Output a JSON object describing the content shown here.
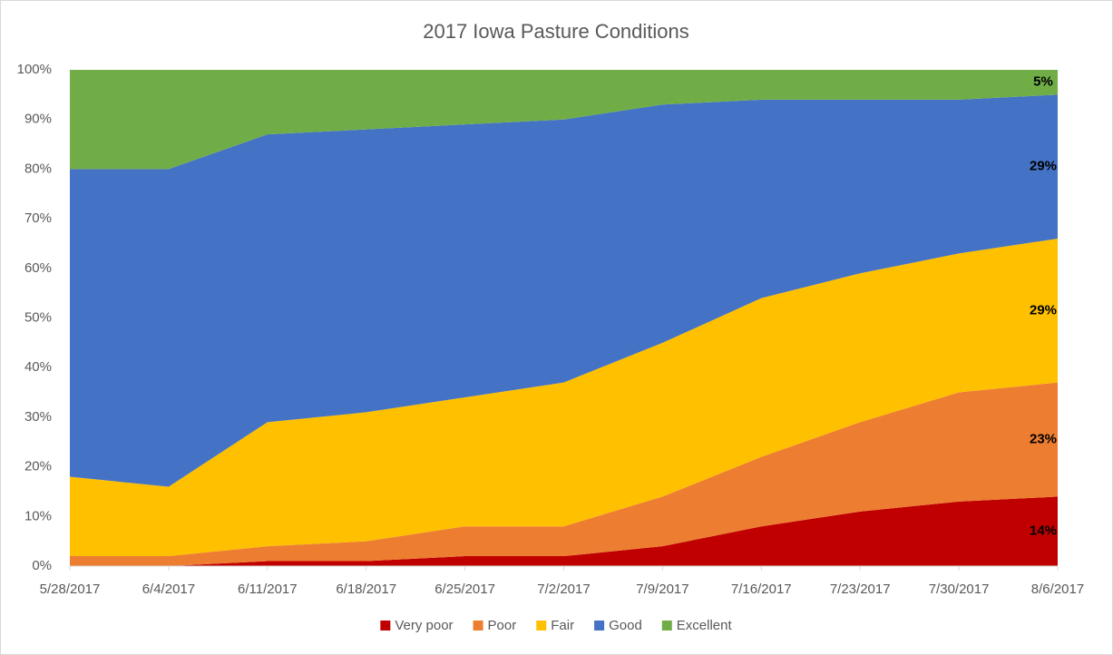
{
  "chart_data": {
    "type": "stacked_area",
    "title": "2017 Iowa Pasture Conditions",
    "categories": [
      "5/28/2017",
      "6/4/2017",
      "6/11/2017",
      "6/18/2017",
      "6/25/2017",
      "7/2/2017",
      "7/9/2017",
      "7/16/2017",
      "7/23/2017",
      "7/30/2017",
      "8/6/2017"
    ],
    "series": [
      {
        "name": "Very poor",
        "color": "#c00000",
        "values": [
          0,
          0,
          1,
          1,
          2,
          2,
          4,
          8,
          11,
          13,
          14
        ],
        "value_labels": [
          null,
          null,
          null,
          null,
          null,
          null,
          null,
          null,
          null,
          null,
          "14%"
        ]
      },
      {
        "name": "Poor",
        "color": "#ed7d31",
        "values": [
          2,
          2,
          3,
          4,
          6,
          6,
          10,
          14,
          18,
          22,
          23
        ],
        "value_labels": [
          null,
          null,
          null,
          null,
          null,
          null,
          null,
          null,
          null,
          null,
          "23%"
        ]
      },
      {
        "name": "Fair",
        "color": "#ffc000",
        "values": [
          16,
          14,
          25,
          26,
          26,
          29,
          31,
          32,
          30,
          28,
          29
        ],
        "value_labels": [
          null,
          null,
          null,
          null,
          null,
          null,
          null,
          null,
          null,
          null,
          "29%"
        ]
      },
      {
        "name": "Good",
        "color": "#4472c4",
        "values": [
          62,
          64,
          58,
          57,
          55,
          53,
          48,
          40,
          35,
          31,
          29
        ],
        "value_labels": [
          null,
          null,
          null,
          null,
          null,
          null,
          null,
          null,
          null,
          null,
          "29%"
        ]
      },
      {
        "name": "Excellent",
        "color": "#70ad47",
        "values": [
          20,
          20,
          13,
          12,
          11,
          10,
          7,
          6,
          6,
          6,
          5
        ],
        "value_labels": [
          null,
          null,
          null,
          null,
          null,
          null,
          null,
          null,
          null,
          null,
          "5%"
        ]
      }
    ],
    "ylim": [
      0,
      100
    ],
    "yticks": [
      {
        "value": 0,
        "label": "0%"
      },
      {
        "value": 10,
        "label": "10%"
      },
      {
        "value": 20,
        "label": "20%"
      },
      {
        "value": 30,
        "label": "30%"
      },
      {
        "value": 40,
        "label": "40%"
      },
      {
        "value": 50,
        "label": "50%"
      },
      {
        "value": 60,
        "label": "60%"
      },
      {
        "value": 70,
        "label": "70%"
      },
      {
        "value": 80,
        "label": "80%"
      },
      {
        "value": 90,
        "label": "90%"
      },
      {
        "value": 100,
        "label": "100%"
      }
    ],
    "legend": "bottom"
  }
}
